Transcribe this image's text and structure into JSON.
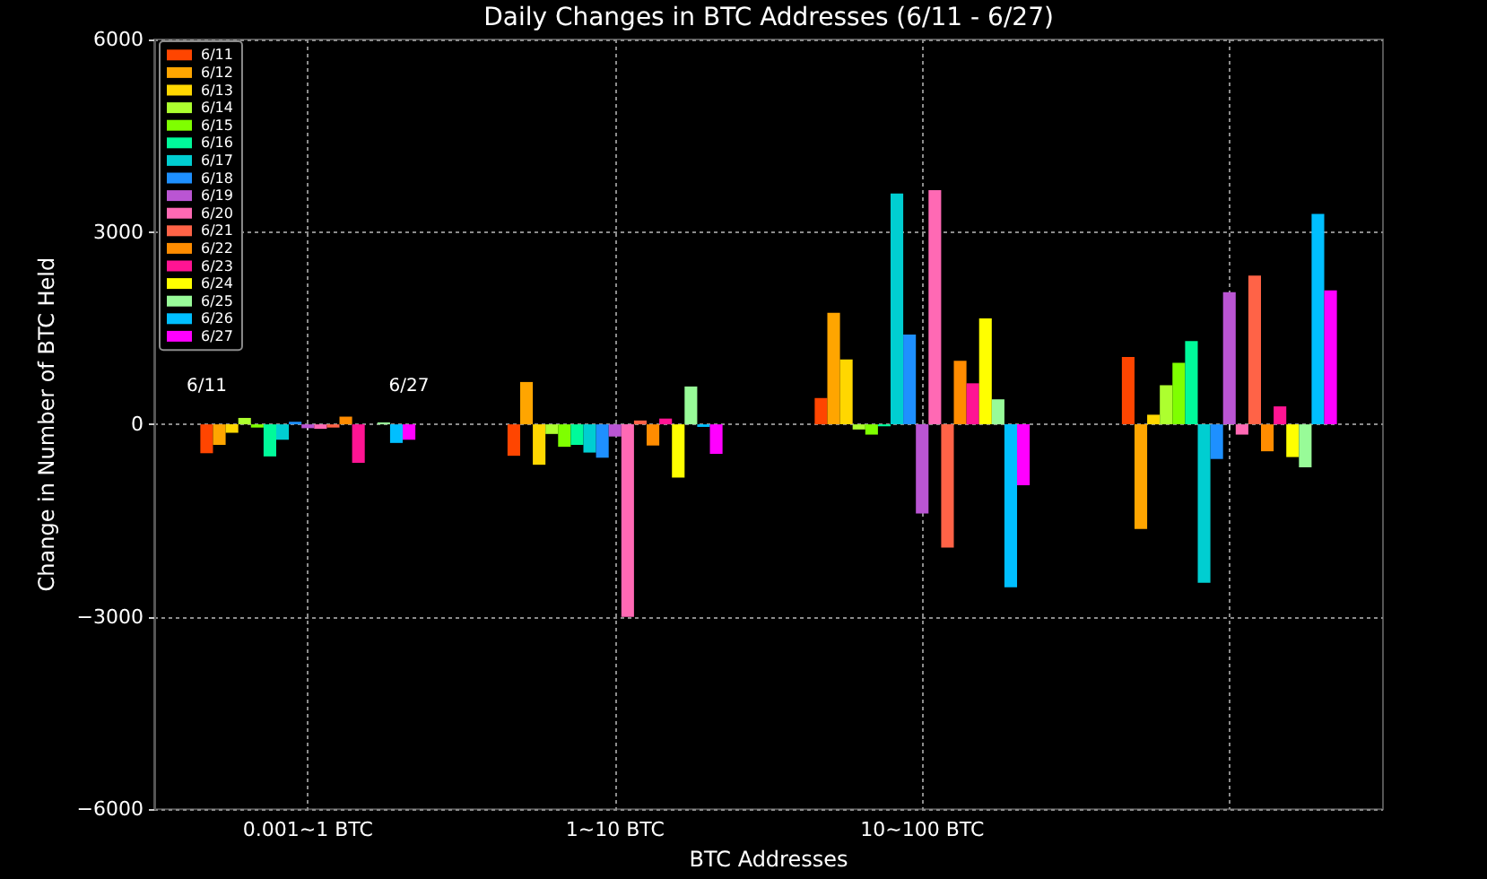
{
  "chart_data": {
    "type": "bar",
    "title": "Daily Changes in BTC Addresses (6/11 - 6/27)",
    "xlabel": "BTC Addresses",
    "ylabel": "Change in Number of BTC Held",
    "categories": [
      "0.001~1 BTC",
      "1~10 BTC",
      "10~100 BTC",
      null
    ],
    "series": [
      {
        "name": "6/11",
        "color": "#ff4500",
        "values": [
          -450,
          -490,
          410,
          1050
        ]
      },
      {
        "name": "6/12",
        "color": "#ffa500",
        "values": [
          -320,
          660,
          1740,
          -1630
        ]
      },
      {
        "name": "6/13",
        "color": "#ffd700",
        "values": [
          -130,
          -630,
          1010,
          150
        ]
      },
      {
        "name": "6/14",
        "color": "#adff2f",
        "values": [
          100,
          -150,
          -80,
          610
        ]
      },
      {
        "name": "6/15",
        "color": "#7fff00",
        "values": [
          -50,
          -350,
          -160,
          960
        ]
      },
      {
        "name": "6/16",
        "color": "#00fa9a",
        "values": [
          -500,
          -320,
          -30,
          1300
        ]
      },
      {
        "name": "6/17",
        "color": "#00ced1",
        "values": [
          -240,
          -440,
          3600,
          -2470
        ]
      },
      {
        "name": "6/18",
        "color": "#1e90ff",
        "values": [
          40,
          -520,
          1400,
          -540
        ]
      },
      {
        "name": "6/19",
        "color": "#ba55d3",
        "values": [
          -60,
          -190,
          -1390,
          2060
        ]
      },
      {
        "name": "6/20",
        "color": "#ff69b4",
        "values": [
          -70,
          -3000,
          3650,
          -160
        ]
      },
      {
        "name": "6/21",
        "color": "#ff6347",
        "values": [
          -50,
          60,
          -1920,
          2320
        ]
      },
      {
        "name": "6/22",
        "color": "#ff8c00",
        "values": [
          120,
          -330,
          990,
          -420
        ]
      },
      {
        "name": "6/23",
        "color": "#ff1493",
        "values": [
          -600,
          90,
          640,
          280
        ]
      },
      {
        "name": "6/24",
        "color": "#ffff00",
        "values": [
          0,
          -830,
          1650,
          -510
        ]
      },
      {
        "name": "6/25",
        "color": "#98fb98",
        "values": [
          30,
          590,
          390,
          -670
        ]
      },
      {
        "name": "6/26",
        "color": "#00bfff",
        "values": [
          -290,
          -40,
          -2540,
          3280
        ]
      },
      {
        "name": "6/27",
        "color": "#ff00ff",
        "values": [
          -240,
          -460,
          -950,
          2090
        ]
      }
    ],
    "ylim": [
      -6000,
      6000
    ],
    "yticks": [
      {
        "value": -6000,
        "label": "−6000"
      },
      {
        "value": -3000,
        "label": "−3000"
      },
      0,
      3000,
      6000
    ],
    "grid": true,
    "legend": "top left",
    "annotations": [
      "6/11",
      "6/27"
    ]
  }
}
